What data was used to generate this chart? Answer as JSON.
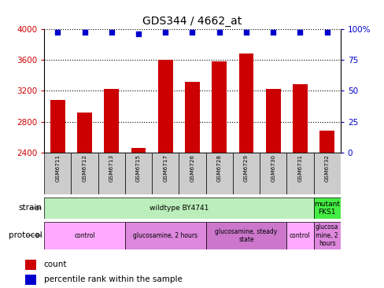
{
  "title": "GDS344 / 4662_at",
  "samples": [
    "GSM6711",
    "GSM6712",
    "GSM6713",
    "GSM6715",
    "GSM6717",
    "GSM6726",
    "GSM6728",
    "GSM6729",
    "GSM6730",
    "GSM6731",
    "GSM6732"
  ],
  "counts": [
    3080,
    2920,
    3220,
    2460,
    3600,
    3310,
    3580,
    3680,
    3220,
    3280,
    2680
  ],
  "percentiles": [
    97,
    97,
    97,
    96,
    97,
    97,
    97,
    97,
    97,
    97,
    97
  ],
  "ylim": [
    2400,
    4000
  ],
  "yticks": [
    2400,
    2800,
    3200,
    3600,
    4000
  ],
  "y2lim": [
    0,
    100
  ],
  "y2ticks": [
    0,
    25,
    50,
    75,
    100
  ],
  "bar_color": "#cc0000",
  "dot_color": "#0000cc",
  "strain_groups": [
    {
      "label": "wildtype BY4741",
      "start": 0,
      "end": 10,
      "color": "#bbeebb"
    },
    {
      "label": "mutant\nFKS1",
      "start": 10,
      "end": 11,
      "color": "#44ee44"
    }
  ],
  "protocol_groups": [
    {
      "label": "control",
      "start": 0,
      "end": 3,
      "color": "#ffaaff"
    },
    {
      "label": "glucosamine, 2 hours",
      "start": 3,
      "end": 6,
      "color": "#dd88dd"
    },
    {
      "label": "glucosamine, steady\nstate",
      "start": 6,
      "end": 9,
      "color": "#cc77cc"
    },
    {
      "label": "control",
      "start": 9,
      "end": 10,
      "color": "#ffaaff"
    },
    {
      "label": "glucosa\nmine, 2\nhours",
      "start": 10,
      "end": 11,
      "color": "#dd88dd"
    }
  ],
  "legend_count_color": "#cc0000",
  "legend_dot_color": "#0000cc",
  "left_tick_color": "#cc0000",
  "right_tick_color": "#0000cc",
  "background_color": "#ffffff",
  "sample_box_color": "#cccccc",
  "grid_color": "#000000",
  "arrow_color": "#888888"
}
